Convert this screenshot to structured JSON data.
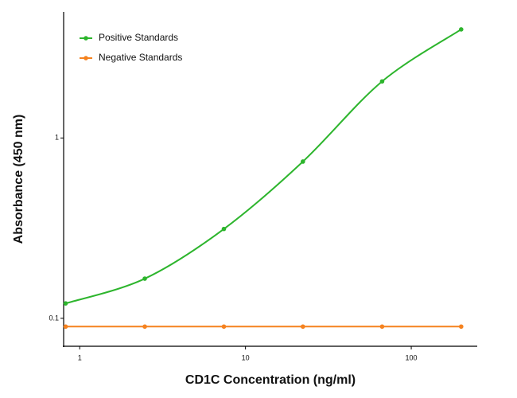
{
  "chart_data": {
    "type": "line",
    "x_label": "CD1C Concentration (ng/ml)",
    "y_label": "Absorbance (450 nm)",
    "x": [
      0.823,
      2.47,
      7.41,
      22.2,
      66.7,
      200
    ],
    "series": [
      {
        "name": "Positive Standards",
        "color": "#2db52d",
        "values": [
          0.121,
          0.166,
          0.313,
          0.74,
          2.06,
          4.0
        ]
      },
      {
        "name": "Negative Standards",
        "color": "#f5821f",
        "values": [
          0.09,
          0.09,
          0.09,
          0.09,
          0.09,
          0.09
        ]
      }
    ],
    "xlim": [
      0.8,
      250
    ],
    "ylim": [
      0.07,
      5
    ],
    "xticks": [
      1,
      10,
      100
    ],
    "yticks": [
      0.1,
      1
    ],
    "xscale": "log",
    "yscale": "log",
    "legend": "upper left"
  }
}
